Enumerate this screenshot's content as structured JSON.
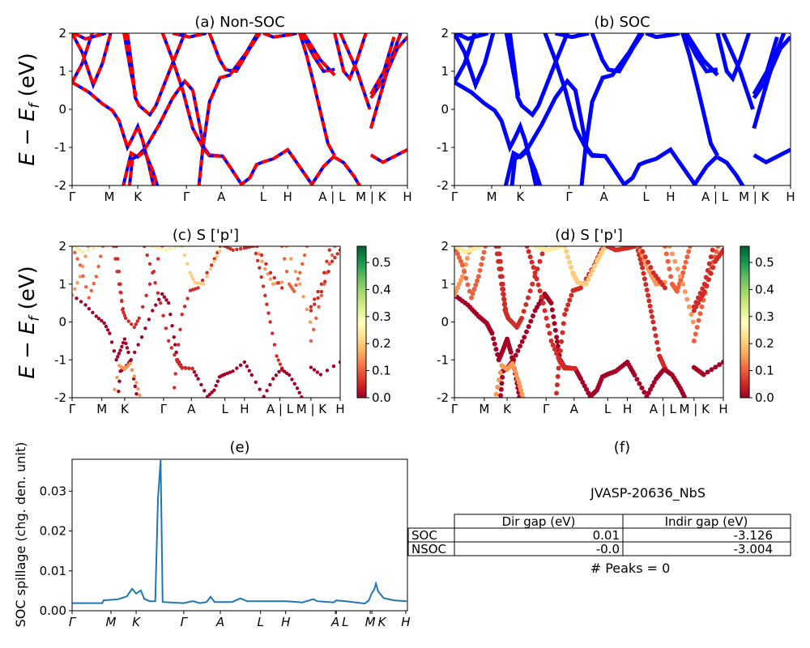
{
  "kpath_labels": [
    "Γ",
    "M",
    "K",
    "Γ",
    "A",
    "L",
    "H",
    "A | L",
    "M | K",
    "H"
  ],
  "kpath_positions": [
    0,
    0.111,
    0.196,
    0.341,
    0.445,
    0.57,
    0.643,
    0.775,
    0.891,
    1.0
  ],
  "spillage_kpath_labels": [
    "Γ",
    "M",
    "K",
    "Γ",
    "A",
    "L",
    "H",
    "A",
    "L",
    "M",
    "K",
    "H"
  ],
  "spillage_kpath_positions": [
    0,
    0.116,
    0.191,
    0.333,
    0.442,
    0.562,
    0.637,
    0.785,
    0.788,
    0.889,
    0.894,
    0.995
  ],
  "colors": {
    "nonsoc_line": "#ff0000",
    "nonsoc_dash": "#0000ff",
    "soc_line": "#0000ff",
    "spillage_line": "#1f77b4"
  },
  "ylabel": {
    "main": "E − E",
    "sub": "f",
    "unit": " (eV)"
  },
  "chart_data": [
    {
      "id": "a",
      "type": "line",
      "title": "(a) Non-SOC",
      "ylim": [
        -2,
        2
      ],
      "yticks": [
        -2,
        -1,
        0,
        1,
        2
      ],
      "xlabel": "",
      "note": "band structure, red solid with blue dashes"
    },
    {
      "id": "b",
      "type": "line",
      "title": "(b) SOC",
      "ylim": [
        -2,
        2
      ],
      "yticks": [
        -2,
        -1,
        0,
        1,
        2
      ],
      "xlabel": ""
    },
    {
      "id": "c",
      "type": "scatter",
      "title": "(c)  S ['p']",
      "ylim": [
        -2,
        2
      ],
      "yticks": [
        -2,
        -1,
        0,
        1,
        2
      ],
      "colorbar": {
        "range": [
          0,
          0.56
        ],
        "ticks": [
          "0.0",
          "0.1",
          "0.2",
          "0.3",
          "0.4",
          "0.5"
        ],
        "colormap": "RdYlGn"
      }
    },
    {
      "id": "d",
      "type": "scatter",
      "title": "(d) S ['p']",
      "ylim": [
        -2,
        2
      ],
      "yticks": [
        -2,
        -1,
        0,
        1,
        2
      ],
      "colorbar": {
        "range": [
          0,
          0.56
        ],
        "ticks": [
          "0.0",
          "0.1",
          "0.2",
          "0.3",
          "0.4",
          "0.5"
        ],
        "colormap": "RdYlGn"
      }
    },
    {
      "id": "e",
      "type": "line",
      "title": "(e)",
      "ylabel": "SOC spillage (chg. den. unit)",
      "ylim": [
        0,
        0.038
      ],
      "yticks": [
        "0.00",
        "0.01",
        "0.02",
        "0.03"
      ],
      "x": [
        0,
        0.09,
        0.094,
        0.139,
        0.163,
        0.179,
        0.191,
        0.205,
        0.215,
        0.231,
        0.248,
        0.256,
        0.264,
        0.27,
        0.332,
        0.36,
        0.381,
        0.401,
        0.413,
        0.425,
        0.477,
        0.502,
        0.522,
        0.639,
        0.687,
        0.719,
        0.731,
        0.78,
        0.788,
        0.816,
        0.873,
        0.885,
        0.893,
        0.901,
        0.906,
        0.913,
        0.929,
        0.961,
        0.998
      ],
      "y": [
        0.0019,
        0.0019,
        0.0026,
        0.0029,
        0.0036,
        0.0055,
        0.0043,
        0.0051,
        0.003,
        0.0024,
        0.0024,
        0.028,
        0.0378,
        0.0022,
        0.0019,
        0.0024,
        0.0019,
        0.0022,
        0.0035,
        0.0022,
        0.0022,
        0.0031,
        0.0024,
        0.0024,
        0.0021,
        0.0029,
        0.0024,
        0.0021,
        0.0026,
        0.0024,
        0.0018,
        0.0026,
        0.0043,
        0.0053,
        0.0068,
        0.0048,
        0.0032,
        0.0026,
        0.0024
      ]
    },
    {
      "id": "f",
      "type": "table",
      "title": "(f)",
      "material": "JVASP-20636_NbS",
      "columns": [
        "Dir gap (eV)",
        "Indir gap (eV)"
      ],
      "rows": [
        {
          "label": "SOC",
          "values": [
            "0.01",
            "-3.126"
          ]
        },
        {
          "label": "NSOC",
          "values": [
            "-0.0",
            "-3.004"
          ]
        }
      ],
      "peaks": "# Peaks = 0"
    }
  ],
  "bands": [
    {
      "w": 0.0,
      "pts": [
        [
          0,
          0.71
        ],
        [
          0.05,
          0.45
        ],
        [
          0.09,
          0.15
        ],
        [
          0.12,
          -0.03
        ],
        [
          0.14,
          -0.3
        ],
        [
          0.165,
          -1.0
        ],
        [
          0.18,
          -0.75
        ],
        [
          0.196,
          -0.45
        ],
        [
          0.21,
          -0.8
        ],
        [
          0.23,
          -1.5
        ],
        [
          0.245,
          -2.1
        ]
      ]
    },
    {
      "w": 0.0,
      "pts": [
        [
          0.17,
          -2.1
        ],
        [
          0.18,
          -1.3
        ],
        [
          0.196,
          -1.22
        ],
        [
          0.22,
          -1.0
        ],
        [
          0.26,
          -0.4
        ],
        [
          0.3,
          0.3
        ],
        [
          0.336,
          0.74
        ],
        [
          0.36,
          0.5
        ],
        [
          0.38,
          -0.4
        ],
        [
          0.393,
          -1.0
        ],
        [
          0.41,
          -1.2
        ],
        [
          0.449,
          -1.23
        ],
        [
          0.47,
          -1.5
        ],
        [
          0.505,
          -1.97
        ],
        [
          0.53,
          -1.8
        ],
        [
          0.55,
          -1.45
        ],
        [
          0.57,
          -1.38
        ],
        [
          0.6,
          -1.3
        ],
        [
          0.643,
          -1.06
        ],
        [
          0.67,
          -1.4
        ],
        [
          0.715,
          -1.97
        ],
        [
          0.75,
          -1.5
        ],
        [
          0.783,
          -1.22
        ]
      ]
    },
    {
      "w": 0.15,
      "pts": [
        [
          0.15,
          -2.1
        ],
        [
          0.176,
          -1.15
        ],
        [
          0.196,
          -1.25
        ],
        [
          0.216,
          -1.1
        ],
        [
          0.24,
          -1.6
        ],
        [
          0.258,
          -2.1
        ]
      ]
    },
    {
      "w": 0.05,
      "pts": [
        [
          0.165,
          2.0
        ],
        [
          0.18,
          1.0
        ],
        [
          0.188,
          0.32
        ],
        [
          0.2,
          0.1
        ],
        [
          0.232,
          -0.14
        ],
        [
          0.25,
          0.1
        ],
        [
          0.29,
          1.0
        ],
        [
          0.336,
          2.0
        ]
      ]
    },
    {
      "w": 0.05,
      "pts": [
        [
          0.155,
          2.0
        ],
        [
          0.175,
          1.0
        ],
        [
          0.19,
          0.35
        ]
      ]
    },
    {
      "w": 0.15,
      "pts": [
        [
          0,
          0.71
        ],
        [
          0.03,
          1.2
        ],
        [
          0.06,
          2.0
        ]
      ]
    },
    {
      "w": 0.1,
      "pts": [
        [
          0,
          2.0
        ],
        [
          0.03,
          1.5
        ],
        [
          0.063,
          0.64
        ],
        [
          0.09,
          1.2
        ],
        [
          0.115,
          2.0
        ]
      ]
    },
    {
      "w": 0.25,
      "pts": [
        [
          0.005,
          2.0
        ],
        [
          0.04,
          1.85
        ],
        [
          0.1,
          2.0
        ]
      ]
    },
    {
      "w": 0.05,
      "pts": [
        [
          0.27,
          2.0
        ],
        [
          0.3,
          1.3
        ],
        [
          0.33,
          0.5
        ],
        [
          0.36,
          -0.5
        ],
        [
          0.393,
          -1.05
        ],
        [
          0.41,
          -1.22
        ],
        [
          0.449,
          -1.23
        ]
      ]
    },
    {
      "w": 0.05,
      "pts": [
        [
          0.377,
          -2.1
        ],
        [
          0.39,
          -1.0
        ],
        [
          0.41,
          0.2
        ],
        [
          0.441,
          0.83
        ],
        [
          0.47,
          0.9
        ],
        [
          0.52,
          1.5
        ],
        [
          0.553,
          2.0
        ]
      ]
    },
    {
      "w": 0.2,
      "pts": [
        [
          0.41,
          2.0
        ],
        [
          0.44,
          1.3
        ],
        [
          0.458,
          1.04
        ],
        [
          0.49,
          1.0
        ],
        [
          0.53,
          1.6
        ],
        [
          0.56,
          2.0
        ]
      ]
    },
    {
      "w": 0.25,
      "pts": [
        [
          0.3,
          2.0
        ],
        [
          0.35,
          1.9
        ],
        [
          0.4,
          2.0
        ]
      ]
    },
    {
      "w": 0.05,
      "pts": [
        [
          0.57,
          2.0
        ],
        [
          0.6,
          1.9
        ],
        [
          0.643,
          1.95
        ],
        [
          0.67,
          2.0
        ]
      ]
    },
    {
      "w": 0.05,
      "pts": [
        [
          0.679,
          2.0
        ],
        [
          0.699,
          1.43
        ],
        [
          0.72,
          0.7
        ],
        [
          0.739,
          0.0
        ],
        [
          0.763,
          -0.9
        ],
        [
          0.783,
          -1.22
        ]
      ]
    },
    {
      "w": 0.15,
      "pts": [
        [
          0.685,
          2.0
        ],
        [
          0.72,
          1.4
        ],
        [
          0.75,
          1.0
        ],
        [
          0.783,
          1.05
        ]
      ]
    },
    {
      "w": 0.05,
      "pts": [
        [
          0.69,
          2.0
        ],
        [
          0.74,
          1.3
        ],
        [
          0.783,
          0.9
        ]
      ]
    },
    {
      "w": 0.0,
      "pts": [
        [
          0.783,
          -1.26
        ],
        [
          0.81,
          -1.4
        ],
        [
          0.84,
          -1.75
        ],
        [
          0.864,
          -2.1
        ]
      ]
    },
    {
      "w": 0.1,
      "pts": [
        [
          0.783,
          2.0
        ],
        [
          0.81,
          1.0
        ],
        [
          0.828,
          0.81
        ],
        [
          0.85,
          1.3
        ],
        [
          0.876,
          2.0
        ]
      ]
    },
    {
      "w": 0.15,
      "pts": [
        [
          0.8,
          2.0
        ],
        [
          0.85,
          1.0
        ],
        [
          0.888,
          0.0
        ]
      ]
    },
    {
      "w": 0.0,
      "pts": [
        [
          0.891,
          -1.2
        ],
        [
          0.927,
          -1.39
        ],
        [
          1.0,
          -1.06
        ]
      ]
    },
    {
      "w": 0.1,
      "pts": [
        [
          0.891,
          -0.5
        ],
        [
          0.92,
          0.4
        ],
        [
          0.95,
          1.3
        ],
        [
          0.98,
          2.0
        ]
      ]
    },
    {
      "w": 0.05,
      "pts": [
        [
          0.891,
          0.3
        ],
        [
          0.93,
          0.8
        ],
        [
          0.97,
          1.6
        ],
        [
          1.0,
          1.9
        ]
      ]
    },
    {
      "w": 0.05,
      "pts": [
        [
          0.891,
          0.4
        ],
        [
          0.93,
          1.0
        ],
        [
          0.96,
          1.9
        ]
      ]
    }
  ]
}
